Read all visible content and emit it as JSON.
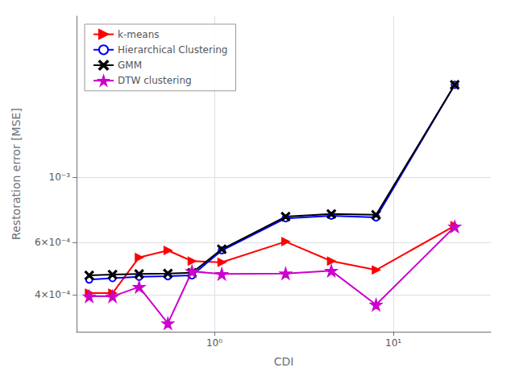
{
  "chart_data": {
    "type": "line",
    "xlabel": "CDI",
    "ylabel": "Restoration error [MSE]",
    "log": true,
    "xlim": [
      0.17,
      35
    ],
    "ylim": [
      0.0003,
      0.0035
    ],
    "xticks": [
      {
        "value": 1,
        "label": "10⁰"
      },
      {
        "value": 10,
        "label": "10¹"
      }
    ],
    "yticks": [
      {
        "value": 0.0004,
        "label": "4×10⁻⁴"
      },
      {
        "value": 0.0006,
        "label": "6×10⁻⁴"
      },
      {
        "value": 0.001,
        "label": "10⁻³"
      }
    ],
    "x": [
      0.2,
      0.27,
      0.38,
      0.55,
      0.75,
      1.1,
      2.5,
      4.5,
      8.0,
      22.0
    ],
    "series": [
      {
        "name": "k-means",
        "color": "red",
        "marker": "triangle-right",
        "values": [
          0.000405,
          0.000405,
          0.000535,
          0.000565,
          0.00052,
          0.000515,
          0.000605,
          0.00052,
          0.000485,
          0.000685
        ]
      },
      {
        "name": "Hierarchical Clustering",
        "color": "blue",
        "marker": "circle-open",
        "values": [
          0.00045,
          0.000455,
          0.00046,
          0.000462,
          0.000465,
          0.000565,
          0.000725,
          0.00074,
          0.00073,
          0.00205
        ]
      },
      {
        "name": "GMM",
        "color": "black",
        "marker": "x",
        "values": [
          0.000465,
          0.000468,
          0.00047,
          0.000472,
          0.000475,
          0.00057,
          0.000735,
          0.00075,
          0.000745,
          0.00205
        ]
      },
      {
        "name": "DTW clustering",
        "color": "#cc00cc",
        "marker": "star",
        "values": [
          0.000395,
          0.000395,
          0.000425,
          0.00032,
          0.00048,
          0.00047,
          0.000472,
          0.000482,
          0.00037,
          0.00068
        ]
      }
    ],
    "grid": true,
    "legend": "upper left"
  }
}
